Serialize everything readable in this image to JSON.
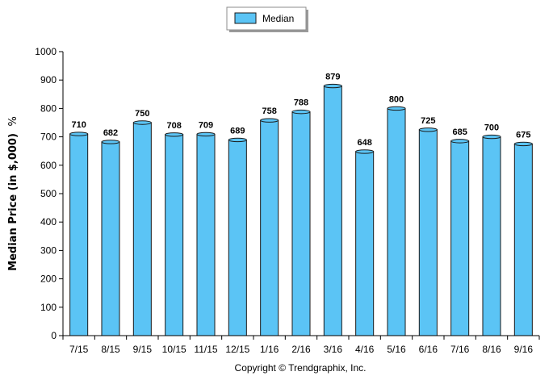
{
  "chart_data": {
    "type": "bar",
    "categories": [
      "7/15",
      "8/15",
      "9/15",
      "10/15",
      "11/15",
      "12/15",
      "1/16",
      "2/16",
      "3/16",
      "4/16",
      "5/16",
      "6/16",
      "7/16",
      "8/16",
      "9/16"
    ],
    "series": [
      {
        "name": "Median",
        "values": [
          710,
          682,
          750,
          708,
          709,
          689,
          758,
          788,
          879,
          648,
          800,
          725,
          685,
          700,
          675
        ]
      }
    ],
    "ylabel": "Median Price (in $,000)",
    "ylabel_suffix": "%",
    "ylim": [
      0,
      1000
    ],
    "yticks": [
      0,
      100,
      200,
      300,
      400,
      500,
      600,
      700,
      800,
      900,
      1000
    ],
    "legend_position": "top-center",
    "bar_color": "#5bc4f5",
    "bar_stroke": "#1a1a1a",
    "grid": false,
    "footer": "Copyright © Trendgraphix, Inc."
  }
}
